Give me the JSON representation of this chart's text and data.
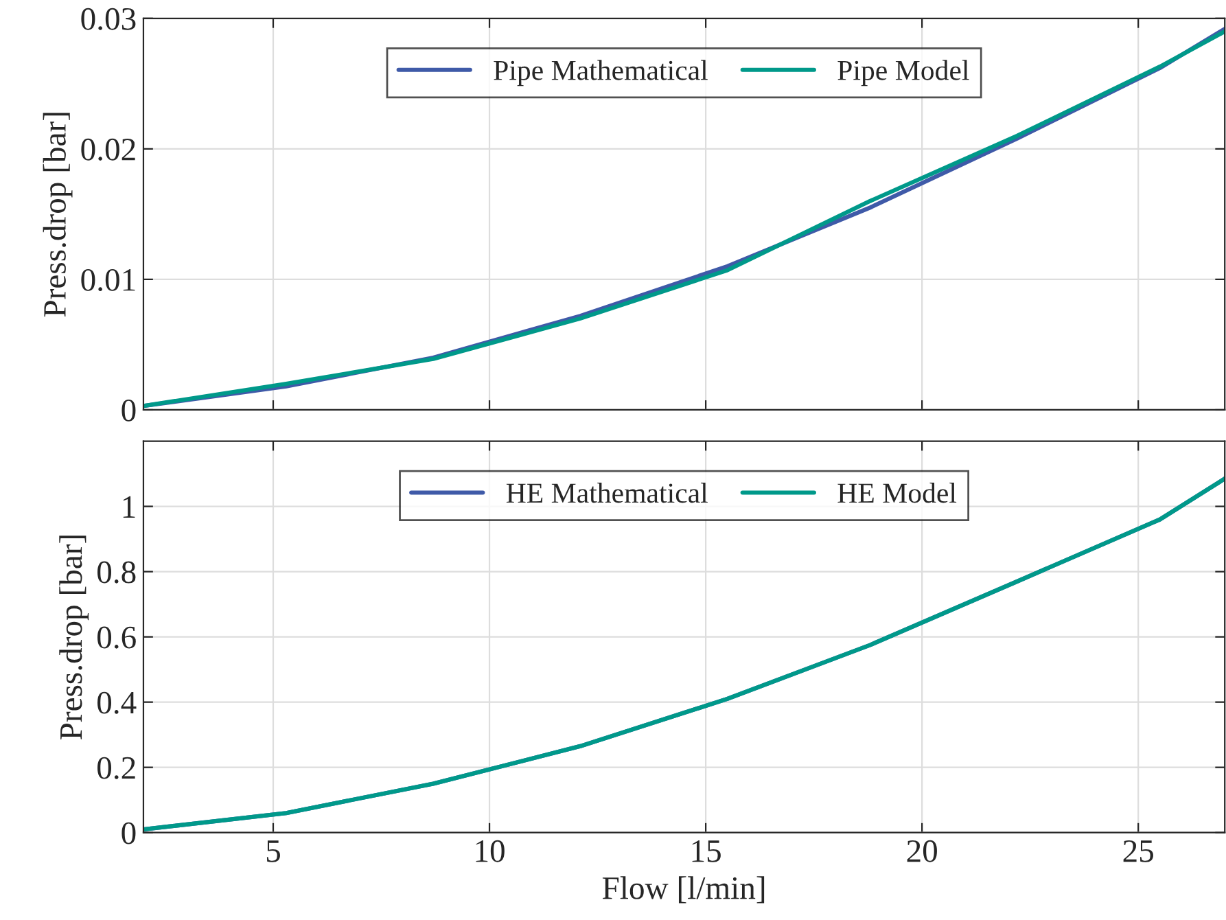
{
  "chart_data": [
    {
      "type": "line",
      "ylabel": "Press.drop [bar]",
      "x": [
        2,
        5.3,
        8.7,
        12.1,
        15.5,
        18.8,
        22.2,
        25.5,
        27
      ],
      "series": [
        {
          "name": "Pipe Mathematical",
          "color": "#3f5aa8",
          "values": [
            0.0003,
            0.0018,
            0.004,
            0.0072,
            0.011,
            0.0155,
            0.0208,
            0.0262,
            0.0292
          ]
        },
        {
          "name": "Pipe Model",
          "color": "#00998a",
          "values": [
            0.0003,
            0.002,
            0.0039,
            0.007,
            0.0107,
            0.016,
            0.021,
            0.0263,
            0.029
          ]
        }
      ],
      "xlim": [
        2,
        27
      ],
      "xticks": [
        5,
        10,
        15,
        20,
        25
      ],
      "ylim": [
        0,
        0.03
      ],
      "yticks": [
        0,
        0.01,
        0.02,
        0.03
      ],
      "tick_labels": "y",
      "grid": true,
      "legend": "top",
      "line_style": "solid",
      "marker": "none"
    },
    {
      "type": "line",
      "xlabel": "Flow [l/min]",
      "ylabel": "Press.drop [bar]",
      "x": [
        2,
        5.3,
        8.7,
        12.1,
        15.5,
        18.8,
        22.2,
        25.5,
        27
      ],
      "series": [
        {
          "name": "HE Mathematical",
          "color": "#3f5aa8",
          "values": [
            0.01,
            0.06,
            0.15,
            0.265,
            0.41,
            0.575,
            0.77,
            0.96,
            1.085
          ]
        },
        {
          "name": "HE Model",
          "color": "#00998a",
          "values": [
            0.01,
            0.06,
            0.15,
            0.265,
            0.41,
            0.575,
            0.77,
            0.96,
            1.085
          ]
        }
      ],
      "xlim": [
        2,
        27
      ],
      "xticks": [
        5,
        10,
        15,
        20,
        25
      ],
      "ylim": [
        0,
        1.2
      ],
      "yticks": [
        0,
        0.2,
        0.4,
        0.6,
        0.8,
        1
      ],
      "grid": true,
      "legend": "top",
      "line_style": "solid",
      "marker": "none"
    }
  ]
}
